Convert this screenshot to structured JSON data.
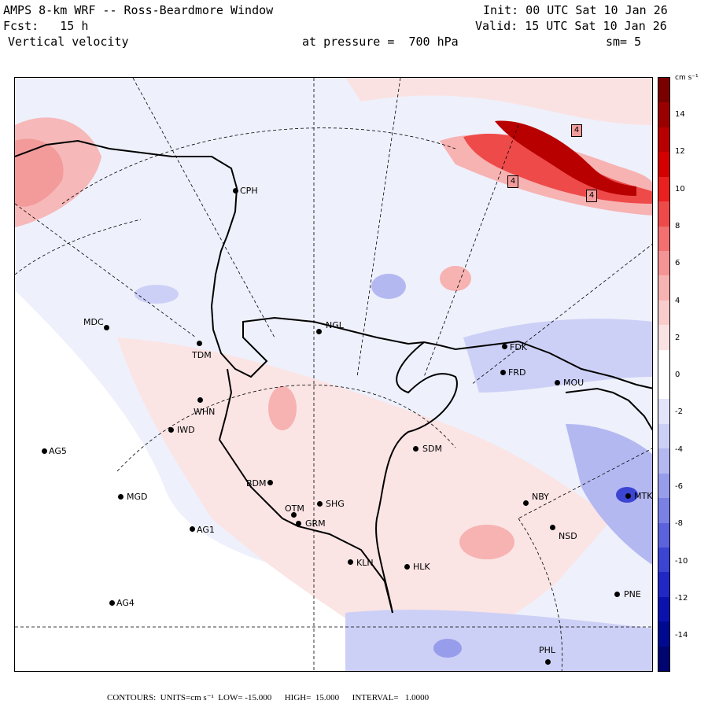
{
  "header": {
    "line1_left": "AMPS 8-km WRF -- Ross-Beardmore Window",
    "line1_right": "Init: 00 UTC Sat 10 Jan 26",
    "line2_left": "Fcst:   15 h",
    "line2_right": "Valid: 15 UTC Sat 10 Jan 26",
    "line3_left": "Vertical velocity",
    "line3_mid": "at pressure =  700 hPa",
    "line3_right": "sm= 5"
  },
  "colorbar": {
    "units": "cm s⁻¹",
    "ticks": [
      "14",
      "12",
      "10",
      "8",
      "6",
      "4",
      "2",
      "0",
      "-2",
      "-4",
      "-6",
      "-8",
      "-10",
      "-12",
      "-14"
    ],
    "colors": [
      "#7a0000",
      "#9a0000",
      "#b80000",
      "#d40000",
      "#e82020",
      "#ee4a4a",
      "#f27070",
      "#f59494",
      "#f7b2b2",
      "#f9cccc",
      "#fbe2e2",
      "#ffffff",
      "#ffffff",
      "#e2e4fa",
      "#cdd0f6",
      "#b4b8f1",
      "#979deb",
      "#7a80e4",
      "#5c62dc",
      "#3c44d2",
      "#2028c4",
      "#0a12ae",
      "#000a90",
      "#000470"
    ]
  },
  "footer": "CONTOURS:  UNITS=cm s⁻¹  LOW= -15.000      HIGH=  15.000      INTERVAL=   1.0000",
  "maxima_labels": [
    "4",
    "4",
    "4"
  ],
  "stations": [
    {
      "id": "CPH"
    },
    {
      "id": "NGL"
    },
    {
      "id": "MDC"
    },
    {
      "id": "TDM"
    },
    {
      "id": "FDK"
    },
    {
      "id": "FRD"
    },
    {
      "id": "MOU"
    },
    {
      "id": "WHN"
    },
    {
      "id": "IWD"
    },
    {
      "id": "AG5"
    },
    {
      "id": "SDM"
    },
    {
      "id": "MGD"
    },
    {
      "id": "BDM"
    },
    {
      "id": "SHG"
    },
    {
      "id": "OTM"
    },
    {
      "id": "GRM"
    },
    {
      "id": "NBY"
    },
    {
      "id": "MTK"
    },
    {
      "id": "AG1"
    },
    {
      "id": "NSD"
    },
    {
      "id": "KLN"
    },
    {
      "id": "HLK"
    },
    {
      "id": "AG4"
    },
    {
      "id": "PNE"
    },
    {
      "id": "PHL"
    }
  ]
}
